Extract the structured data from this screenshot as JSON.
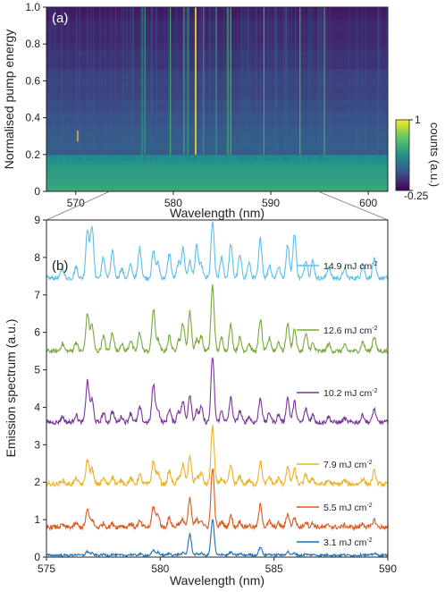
{
  "panel_a": {
    "label": "(a)",
    "xlabel": "Wavelength (nm)",
    "ylabel": "Normalised pump energy",
    "x_ticks": [
      "570",
      "580",
      "590",
      "600"
    ],
    "y_ticks": [
      "0",
      "0.2",
      "0.4",
      "0.6",
      "0.8",
      "1.0"
    ],
    "colorbar": {
      "label": "counts (a.u.)",
      "max_label": "1",
      "min_label": "-0.25"
    }
  },
  "panel_b": {
    "label": "(b)",
    "xlabel": "Wavelength (nm)",
    "ylabel": "Emission spectrum (a.u.)",
    "x_ticks": [
      "575",
      "580",
      "585",
      "590"
    ],
    "y_ticks": [
      "0",
      "1",
      "2",
      "3",
      "4",
      "5",
      "6",
      "7",
      "8",
      "9"
    ],
    "legend": [
      {
        "text": "14.9 mJ cm",
        "sup": "-2",
        "color": "#5bc0e8"
      },
      {
        "text": "12.6 mJ cm",
        "sup": "-2",
        "color": "#78a93a"
      },
      {
        "text": "10.2 mJ cm",
        "sup": "-2",
        "color": "#7b3596"
      },
      {
        "text": "7.9 mJ cm",
        "sup": "-2",
        "color": "#ebb123"
      },
      {
        "text": "5.5 mJ cm",
        "sup": "-2",
        "color": "#d95a1f"
      },
      {
        "text": "3.1 mJ cm",
        "sup": "-2",
        "color": "#1f6fb6"
      }
    ]
  },
  "chart_data": [
    {
      "type": "heatmap",
      "xlabel": "Wavelength (nm)",
      "ylabel": "Normalised pump energy",
      "xlim": [
        567,
        602
      ],
      "ylim": [
        0,
        1.0
      ],
      "colorbar_range": [
        -0.25,
        1
      ],
      "colormap": "viridis",
      "lasing_lines_nm": [
        576.8,
        577.1,
        579.7,
        581.1,
        581.5,
        582.3,
        583.1,
        584.4,
        585.6,
        585.9,
        589.3,
        593.0,
        595.5
      ],
      "threshold_energy": 0.2,
      "annotation": {
        "x": 570.2,
        "y": 0.3
      }
    },
    {
      "type": "line",
      "xlabel": "Wavelength (nm)",
      "ylabel": "Emission spectrum (a.u.)",
      "xlim": [
        575,
        590
      ],
      "ylim": [
        0,
        9
      ],
      "peaks_nm": [
        575.7,
        576.3,
        576.8,
        577.0,
        577.5,
        577.9,
        578.3,
        578.7,
        579.1,
        579.7,
        579.9,
        580.4,
        580.8,
        581.0,
        581.3,
        581.6,
        581.8,
        582.3,
        582.7,
        583.1,
        583.5,
        583.9,
        584.4,
        584.8,
        585.2,
        585.6,
        585.9,
        586.4,
        586.7,
        587.4,
        588.1,
        588.9,
        589.4
      ],
      "series": [
        {
          "name": "14.9 mJ cm-2",
          "baseline": 7.45,
          "max": 8.95,
          "peak_heights": [
            0.25,
            0.3,
            1.3,
            1.4,
            0.55,
            0.7,
            0.25,
            0.35,
            0.8,
            0.7,
            0.4,
            0.65,
            0.4,
            0.8,
            0.45,
            0.85,
            0.35,
            1.5,
            0.55,
            0.9,
            0.6,
            0.4,
            1.05,
            0.35,
            0.3,
            0.9,
            1.2,
            0.5,
            0.45,
            0.3,
            0.25,
            0.4,
            0.5
          ]
        },
        {
          "name": "12.6 mJ cm-2",
          "baseline": 5.5,
          "max": 7.25,
          "peak_heights": [
            0.2,
            0.25,
            1.0,
            0.7,
            0.4,
            0.5,
            0.2,
            0.3,
            0.5,
            1.1,
            0.3,
            0.4,
            0.3,
            0.75,
            1.05,
            0.3,
            0.4,
            1.75,
            0.35,
            0.7,
            0.35,
            0.2,
            0.85,
            0.35,
            0.25,
            0.75,
            0.6,
            0.45,
            0.2,
            0.2,
            0.15,
            0.25,
            0.4
          ]
        },
        {
          "name": "10.2 mJ cm-2",
          "baseline": 3.6,
          "max": 5.35,
          "peak_heights": [
            0.15,
            0.2,
            1.1,
            0.6,
            0.25,
            0.3,
            0.15,
            0.25,
            0.4,
            1.0,
            0.35,
            0.35,
            0.3,
            0.55,
            0.75,
            0.3,
            0.4,
            1.75,
            0.3,
            0.65,
            0.3,
            0.15,
            0.65,
            0.25,
            0.2,
            0.65,
            0.55,
            0.35,
            0.2,
            0.15,
            0.1,
            0.2,
            0.35
          ]
        },
        {
          "name": "7.9 mJ cm-2",
          "baseline": 1.95,
          "max": 3.5,
          "peak_heights": [
            0.1,
            0.15,
            0.65,
            0.4,
            0.15,
            0.2,
            0.1,
            0.15,
            0.25,
            0.6,
            0.3,
            0.35,
            0.15,
            0.55,
            0.75,
            0.2,
            0.3,
            1.55,
            0.15,
            0.5,
            0.2,
            0.1,
            0.6,
            0.2,
            0.15,
            0.45,
            0.4,
            0.25,
            0.15,
            0.1,
            0.1,
            0.15,
            0.35
          ]
        },
        {
          "name": "5.5 mJ cm-2",
          "baseline": 0.8,
          "max": 2.4,
          "peak_heights": [
            0.05,
            0.1,
            0.45,
            0.2,
            0.1,
            0.1,
            0.05,
            0.1,
            0.15,
            0.55,
            0.35,
            0.25,
            0.1,
            0.2,
            0.75,
            0.2,
            0.2,
            1.6,
            0.15,
            0.3,
            0.15,
            0.05,
            0.6,
            0.15,
            0.1,
            0.35,
            0.25,
            0.15,
            0.1,
            0.05,
            0.05,
            0.1,
            0.2
          ]
        },
        {
          "name": "3.1 mJ cm-2",
          "baseline": 0.05,
          "max": 1.0,
          "peak_heights": [
            0.0,
            0.02,
            0.1,
            0.05,
            0.02,
            0.02,
            0.0,
            0.02,
            0.03,
            0.12,
            0.08,
            0.05,
            0.02,
            0.06,
            0.55,
            0.03,
            0.05,
            0.95,
            0.03,
            0.08,
            0.04,
            0.02,
            0.22,
            0.03,
            0.02,
            0.1,
            0.05,
            0.03,
            0.02,
            0.01,
            0.01,
            0.02,
            0.05
          ]
        }
      ]
    }
  ]
}
